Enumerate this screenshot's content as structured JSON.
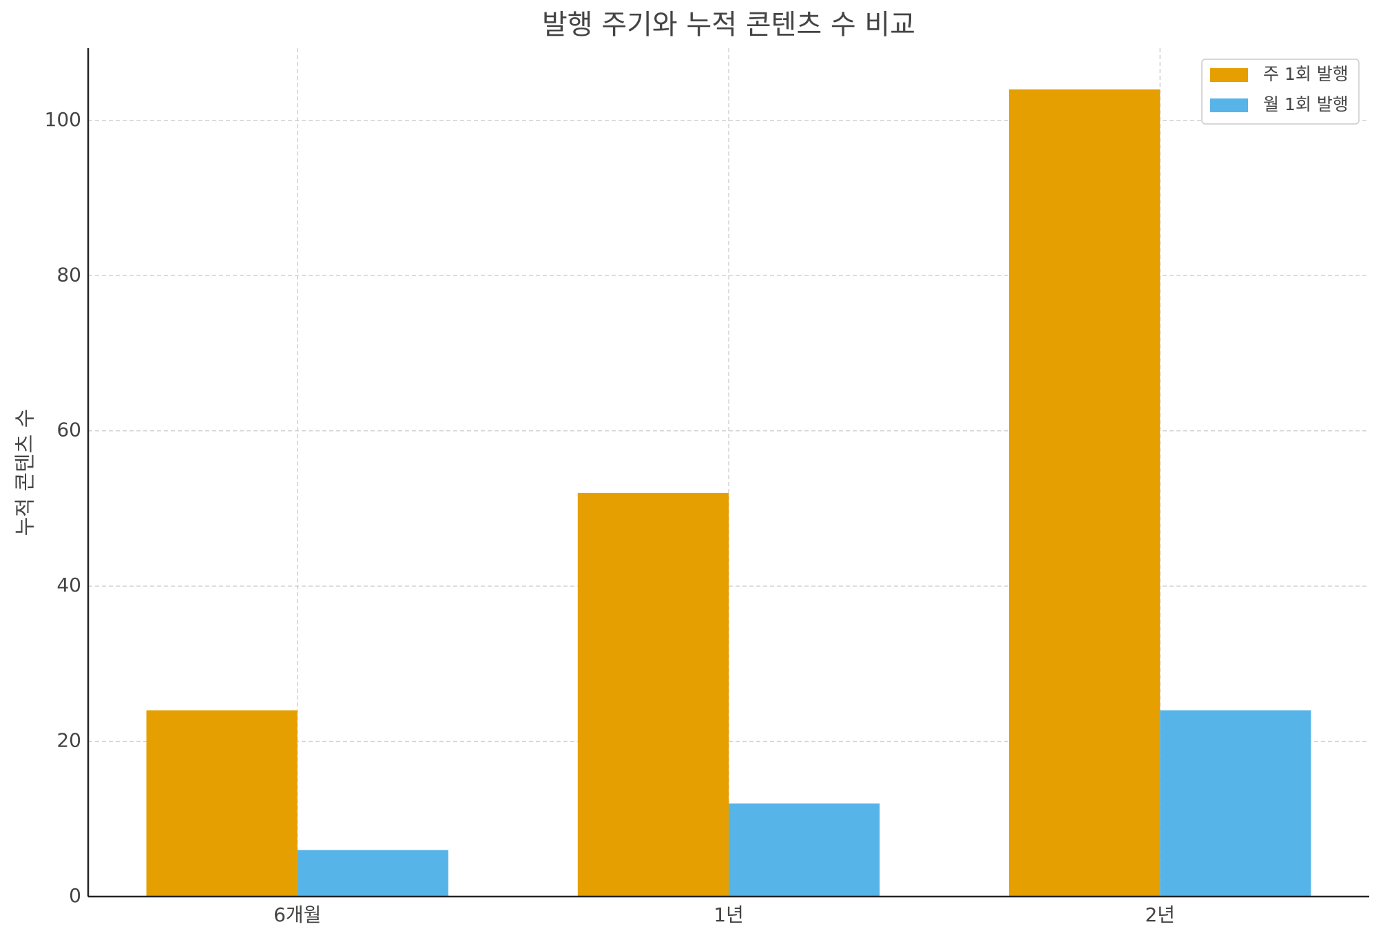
{
  "chart_data": {
    "type": "bar",
    "title": "발행 주기와 누적 콘텐츠 수 비교",
    "y_label": "누적 콘텐츠 수",
    "categories": [
      "6개월",
      "1년",
      "2년"
    ],
    "series": [
      {
        "name": "주 1회 발행",
        "color": "#e69f00",
        "values": [
          24,
          52,
          104
        ]
      },
      {
        "name": "월 1회 발행",
        "color": "#56b4e9",
        "values": [
          6,
          12,
          24
        ]
      }
    ],
    "ylim": [
      0,
      109.3
    ],
    "yticks": [
      0,
      20,
      40,
      60,
      80,
      100
    ],
    "grid": true,
    "legend": "upper right"
  }
}
